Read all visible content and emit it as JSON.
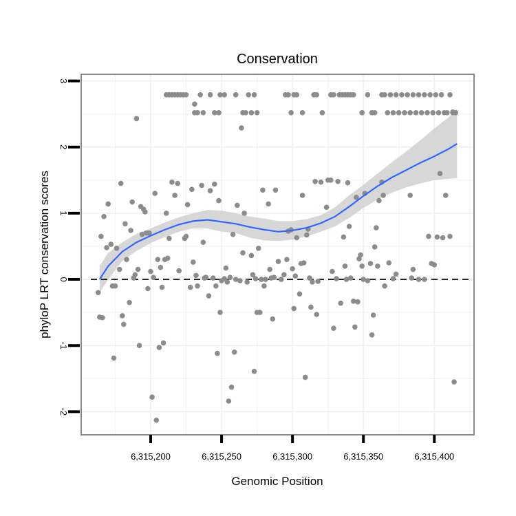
{
  "chart_data": {
    "type": "scatter",
    "title": "Conservation",
    "xlabel": "Genomic Position",
    "ylabel": "phyloP LRT conservation scores",
    "xlim": [
      6315151,
      6315428
    ],
    "ylim": [
      -2.35,
      3.1
    ],
    "x_ticks": [
      {
        "value": 6315200,
        "label": "6,315,200"
      },
      {
        "value": 6315250,
        "label": "6,315,250"
      },
      {
        "value": 6315300,
        "label": "6,315,300"
      },
      {
        "value": 6315350,
        "label": "6,315,350"
      },
      {
        "value": 6315400,
        "label": "6,315,400"
      }
    ],
    "y_ticks": [
      {
        "value": -2,
        "label": "-2"
      },
      {
        "value": -1,
        "label": "-1"
      },
      {
        "value": 0,
        "label": "0"
      },
      {
        "value": 1,
        "label": "1"
      },
      {
        "value": 2,
        "label": "2"
      },
      {
        "value": 3,
        "label": "3"
      }
    ],
    "grid": true,
    "reference_line": {
      "y": 0,
      "style": "dashed"
    },
    "colors": {
      "points": "#8c8c8c",
      "smooth": "#3366ff",
      "band": "#d3d3d3",
      "grid": "#f2f2f2",
      "panel_border": "#8a8a8a"
    },
    "points": [
      [
        6315163,
        -0.2
      ],
      [
        6315164,
        -0.57
      ],
      [
        6315165,
        0.65
      ],
      [
        6315166,
        -0.58
      ],
      [
        6315167,
        0.95
      ],
      [
        6315169,
        0.48
      ],
      [
        6315170,
        1.14
      ],
      [
        6315172,
        0.53
      ],
      [
        6315173,
        -0.1
      ],
      [
        6315174,
        -1.19
      ],
      [
        6315175,
        -0.1
      ],
      [
        6315176,
        0.47
      ],
      [
        6315178,
        0.15
      ],
      [
        6315179,
        1.45
      ],
      [
        6315180,
        -0.55
      ],
      [
        6315181,
        -0.68
      ],
      [
        6315182,
        0.84
      ],
      [
        6315183,
        0.3
      ],
      [
        6315185,
        -0.35
      ],
      [
        6315186,
        0.74
      ],
      [
        6315187,
        1.17
      ],
      [
        6315188,
        0.02
      ],
      [
        6315189,
        0.07
      ],
      [
        6315190,
        2.43
      ],
      [
        6315191,
        0.15
      ],
      [
        6315192,
        -1.0
      ],
      [
        6315193,
        1.1
      ],
      [
        6315194,
        0.68
      ],
      [
        6315195,
        1.06
      ],
      [
        6315196,
        1.02
      ],
      [
        6315197,
        0.7
      ],
      [
        6315198,
        -0.14
      ],
      [
        6315199,
        0.7
      ],
      [
        6315200,
        0.12
      ],
      [
        6315201,
        -1.78
      ],
      [
        6315202,
        0.03
      ],
      [
        6315203,
        1.3
      ],
      [
        6315204,
        -2.13
      ],
      [
        6315205,
        0.3
      ],
      [
        6315206,
        -1.03
      ],
      [
        6315207,
        0.18
      ],
      [
        6315208,
        -0.12
      ],
      [
        6315209,
        -0.96
      ],
      [
        6315210,
        0.3
      ],
      [
        6315211,
        1.0
      ],
      [
        6315212,
        0.32
      ],
      [
        6315213,
        0.62
      ],
      [
        6315215,
        1.47
      ],
      [
        6315217,
        1.27
      ],
      [
        6315219,
        1.45
      ],
      [
        6315220,
        0.13
      ],
      [
        6315224,
        0.62
      ],
      [
        6315225,
        0.65
      ],
      [
        6315226,
        1.13
      ],
      [
        6315228,
        -0.12
      ],
      [
        6315229,
        1.36
      ],
      [
        6315230,
        0.26
      ],
      [
        6315231,
        2.65
      ],
      [
        6315232,
        0.06
      ],
      [
        6315233,
        -0.1
      ],
      [
        6315236,
        1.42
      ],
      [
        6315237,
        0.56
      ],
      [
        6315238,
        0.02
      ],
      [
        6315239,
        0.03
      ],
      [
        6315241,
        -0.25
      ],
      [
        6315242,
        1.34
      ],
      [
        6315244,
        0.02
      ],
      [
        6315245,
        1.44
      ],
      [
        6315246,
        -0.1
      ],
      [
        6315247,
        -1.12
      ],
      [
        6315248,
        1.19
      ],
      [
        6315249,
        -0.5
      ],
      [
        6315250,
        -0.02
      ],
      [
        6315252,
        0.01
      ],
      [
        6315253,
        0.17
      ],
      [
        6315254,
        -0.04
      ],
      [
        6315255,
        -1.84
      ],
      [
        6315256,
        0.03
      ],
      [
        6315257,
        -1.63
      ],
      [
        6315258,
        0.68
      ],
      [
        6315259,
        -1.1
      ],
      [
        6315260,
        0.0
      ],
      [
        6315261,
        1.12
      ],
      [
        6315263,
        -0.02
      ],
      [
        6315264,
        2.29
      ],
      [
        6315265,
        0.4
      ],
      [
        6315266,
        1.0
      ],
      [
        6315268,
        -0.04
      ],
      [
        6315271,
        0.36
      ],
      [
        6315272,
        0.07
      ],
      [
        6315273,
        -1.39
      ],
      [
        6315274,
        0.01
      ],
      [
        6315275,
        -0.5
      ],
      [
        6315276,
        0.47
      ],
      [
        6315277,
        -0.5
      ],
      [
        6315278,
        0.0
      ],
      [
        6315279,
        1.35
      ],
      [
        6315280,
        -0.1
      ],
      [
        6315281,
        0.0
      ],
      [
        6315283,
        1.14
      ],
      [
        6315284,
        0.15
      ],
      [
        6315285,
        0.02
      ],
      [
        6315286,
        -0.6
      ],
      [
        6315287,
        0.03
      ],
      [
        6315288,
        1.35
      ],
      [
        6315290,
        0.27
      ],
      [
        6315292,
        0.0
      ],
      [
        6315294,
        0.07
      ],
      [
        6315296,
        0.3
      ],
      [
        6315297,
        0.73
      ],
      [
        6315299,
        0.75
      ],
      [
        6315300,
        0.16
      ],
      [
        6315301,
        -0.44
      ],
      [
        6315302,
        0.05
      ],
      [
        6315303,
        0.63
      ],
      [
        6315305,
        -0.22
      ],
      [
        6315306,
        0.24
      ],
      [
        6315307,
        1.27
      ],
      [
        6315308,
        0.25
      ],
      [
        6315309,
        -1.48
      ],
      [
        6315310,
        0.67
      ],
      [
        6315311,
        0.76
      ],
      [
        6315312,
        0.02
      ],
      [
        6315313,
        -0.42
      ],
      [
        6315314,
        -0.04
      ],
      [
        6315316,
        1.48
      ],
      [
        6315317,
        -0.53
      ],
      [
        6315318,
        -0.03
      ],
      [
        6315320,
        1.47
      ],
      [
        6315324,
        1.09
      ],
      [
        6315325,
        1.5
      ],
      [
        6315327,
        1.5
      ],
      [
        6315328,
        0.12
      ],
      [
        6315329,
        -0.74
      ],
      [
        6315331,
        0.01
      ],
      [
        6315332,
        1.48
      ],
      [
        6315334,
        -0.36
      ],
      [
        6315336,
        0.64
      ],
      [
        6315337,
        0.2
      ],
      [
        6315338,
        0.0
      ],
      [
        6315339,
        1.46
      ],
      [
        6315340,
        0.8
      ],
      [
        6315341,
        0.02
      ],
      [
        6315343,
        -0.33
      ],
      [
        6315344,
        -0.72
      ],
      [
        6315345,
        1.24
      ],
      [
        6315346,
        -0.34
      ],
      [
        6315347,
        0.31
      ],
      [
        6315348,
        0.37
      ],
      [
        6315349,
        0.2
      ],
      [
        6315350,
        0.0
      ],
      [
        6315351,
        1.3
      ],
      [
        6315353,
        -0.02
      ],
      [
        6315355,
        0.24
      ],
      [
        6315356,
        -0.84
      ],
      [
        6315357,
        -0.54
      ],
      [
        6315358,
        0.49
      ],
      [
        6315359,
        0.78
      ],
      [
        6315360,
        0.2
      ],
      [
        6315361,
        1.19
      ],
      [
        6315363,
        1.47
      ],
      [
        6315364,
        1.27
      ],
      [
        6315365,
        -0.1
      ],
      [
        6315368,
        0.25
      ],
      [
        6315371,
        0.01
      ],
      [
        6315373,
        0.08
      ],
      [
        6315383,
        1.27
      ],
      [
        6315384,
        0.02
      ],
      [
        6315385,
        0.15
      ],
      [
        6315389,
        0.0
      ],
      [
        6315393,
        0.0
      ],
      [
        6315396,
        0.65
      ],
      [
        6315398,
        0.24
      ],
      [
        6315400,
        0.22
      ],
      [
        6315402,
        0.64
      ],
      [
        6315404,
        1.6
      ],
      [
        6315406,
        0.63
      ],
      [
        6315408,
        1.27
      ],
      [
        6315411,
        0.65
      ],
      [
        6315413,
        2.53
      ],
      [
        6315414,
        -1.55
      ],
      [
        6315211,
        2.79
      ],
      [
        6315213,
        2.79
      ],
      [
        6315215,
        2.79
      ],
      [
        6315217,
        2.79
      ],
      [
        6315219,
        2.79
      ],
      [
        6315221,
        2.79
      ],
      [
        6315223,
        2.79
      ],
      [
        6315225,
        2.79
      ],
      [
        6315231,
        2.52
      ],
      [
        6315233,
        2.52
      ],
      [
        6315235,
        2.79
      ],
      [
        6315237,
        2.52
      ],
      [
        6315242,
        2.79
      ],
      [
        6315245,
        2.52
      ],
      [
        6315248,
        2.52
      ],
      [
        6315249,
        2.79
      ],
      [
        6315252,
        2.79
      ],
      [
        6315260,
        2.79
      ],
      [
        6315265,
        2.52
      ],
      [
        6315267,
        2.52
      ],
      [
        6315269,
        2.79
      ],
      [
        6315271,
        2.52
      ],
      [
        6315273,
        2.79
      ],
      [
        6315275,
        2.52
      ],
      [
        6315295,
        2.79
      ],
      [
        6315297,
        2.79
      ],
      [
        6315299,
        2.52
      ],
      [
        6315301,
        2.79
      ],
      [
        6315303,
        2.79
      ],
      [
        6315307,
        2.52
      ],
      [
        6315315,
        2.79
      ],
      [
        6315317,
        2.79
      ],
      [
        6315321,
        2.52
      ],
      [
        6315327,
        2.79
      ],
      [
        6315329,
        2.79
      ],
      [
        6315333,
        2.79
      ],
      [
        6315335,
        2.79
      ],
      [
        6315337,
        2.79
      ],
      [
        6315339,
        2.79
      ],
      [
        6315341,
        2.79
      ],
      [
        6315343,
        2.79
      ],
      [
        6315349,
        2.52
      ],
      [
        6315353,
        2.79
      ],
      [
        6315356,
        2.52
      ],
      [
        6315358,
        2.52
      ],
      [
        6315363,
        2.79
      ],
      [
        6315365,
        2.79
      ],
      [
        6315367,
        2.52
      ],
      [
        6315369,
        2.79
      ],
      [
        6315371,
        2.52
      ],
      [
        6315373,
        2.79
      ],
      [
        6315375,
        2.52
      ],
      [
        6315377,
        2.79
      ],
      [
        6315379,
        2.52
      ],
      [
        6315381,
        2.79
      ],
      [
        6315383,
        2.52
      ],
      [
        6315385,
        2.79
      ],
      [
        6315387,
        2.52
      ],
      [
        6315389,
        2.79
      ],
      [
        6315391,
        2.52
      ],
      [
        6315393,
        2.79
      ],
      [
        6315395,
        2.52
      ],
      [
        6315397,
        2.79
      ],
      [
        6315399,
        2.52
      ],
      [
        6315401,
        2.79
      ],
      [
        6315403,
        2.52
      ],
      [
        6315405,
        2.79
      ],
      [
        6315407,
        2.52
      ],
      [
        6315409,
        2.52
      ],
      [
        6315411,
        2.79
      ],
      [
        6315413,
        2.52
      ],
      [
        6315415,
        2.52
      ]
    ],
    "smooth": {
      "x": [
        6315164,
        6315170,
        6315180,
        6315190,
        6315200,
        6315210,
        6315220,
        6315230,
        6315240,
        6315250,
        6315260,
        6315270,
        6315280,
        6315290,
        6315300,
        6315310,
        6315320,
        6315330,
        6315340,
        6315350,
        6315360,
        6315370,
        6315380,
        6315390,
        6315400,
        6315410,
        6315416
      ],
      "y": [
        0.0,
        0.2,
        0.42,
        0.56,
        0.66,
        0.75,
        0.83,
        0.88,
        0.9,
        0.87,
        0.84,
        0.79,
        0.75,
        0.72,
        0.74,
        0.78,
        0.85,
        0.95,
        1.1,
        1.26,
        1.41,
        1.54,
        1.65,
        1.76,
        1.86,
        1.97,
        2.05
      ],
      "lower": [
        -0.2,
        0.0,
        0.28,
        0.43,
        0.55,
        0.64,
        0.72,
        0.77,
        0.77,
        0.72,
        0.7,
        0.63,
        0.59,
        0.58,
        0.6,
        0.65,
        0.72,
        0.8,
        0.93,
        1.08,
        1.21,
        1.31,
        1.39,
        1.45,
        1.5,
        1.52,
        1.53
      ],
      "upper": [
        0.2,
        0.4,
        0.56,
        0.69,
        0.77,
        0.86,
        0.94,
        1.0,
        1.05,
        1.04,
        1.0,
        0.95,
        0.92,
        0.88,
        0.88,
        0.91,
        0.97,
        1.09,
        1.27,
        1.43,
        1.6,
        1.77,
        1.93,
        2.1,
        2.28,
        2.45,
        2.58
      ]
    }
  }
}
